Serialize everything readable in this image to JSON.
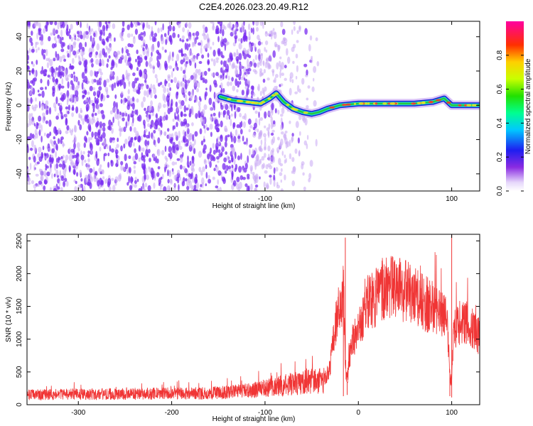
{
  "figure": {
    "title": "C2E4.2026.023.20.49.R12"
  },
  "chart_data": [
    {
      "type": "heatmap",
      "xlabel": "Height of straight line (km)",
      "ylabel": "Frequency (Hz)",
      "xlim": [
        -355,
        130
      ],
      "ylim": [
        -50,
        49
      ],
      "xticks": [
        -300,
        -200,
        -100,
        0,
        100
      ],
      "yticks": [
        -40,
        -20,
        0,
        20,
        40
      ],
      "grid": false,
      "colorbar": {
        "label": "Normalized spectral amplitude",
        "range": [
          0,
          1
        ],
        "ticks": [
          "0.0",
          "0.2",
          "0.4",
          "0.6",
          "0.8"
        ],
        "tick_values": [
          0,
          0.2,
          0.4,
          0.6,
          0.8
        ],
        "colormap": "rainbow (white, purple, blue, cyan, green, yellow, red, magenta)"
      },
      "colors": {
        "noise": "#7a2cf0",
        "noise_light": "#c9a8f4",
        "ridge_edge": "#1a20d8",
        "ridge_mid": "#20d8d0",
        "ridge_core": "#28c840",
        "ridge_hot": "#f03a2a"
      },
      "noise_region": {
        "x_start": -355,
        "x_fade": -110,
        "x_end": -40
      },
      "signal_ridge": [
        {
          "x": -148,
          "f": 5
        },
        {
          "x": -135,
          "f": 3
        },
        {
          "x": -120,
          "f": 2
        },
        {
          "x": -105,
          "f": 1
        },
        {
          "x": -95,
          "f": 4
        },
        {
          "x": -88,
          "f": 7
        },
        {
          "x": -80,
          "f": 2
        },
        {
          "x": -70,
          "f": -2
        },
        {
          "x": -60,
          "f": -4
        },
        {
          "x": -50,
          "f": -5
        },
        {
          "x": -42,
          "f": -4
        },
        {
          "x": -33,
          "f": -2
        },
        {
          "x": -20,
          "f": 0
        },
        {
          "x": 0,
          "f": 1
        },
        {
          "x": 30,
          "f": 1
        },
        {
          "x": 60,
          "f": 1
        },
        {
          "x": 80,
          "f": 2
        },
        {
          "x": 92,
          "f": 4
        },
        {
          "x": 100,
          "f": 0
        },
        {
          "x": 130,
          "f": 0
        }
      ]
    },
    {
      "type": "line",
      "xlabel": "Height of straight line (km)",
      "ylabel": "SNR (10 * v/v)",
      "xlim": [
        -355,
        130
      ],
      "ylim": [
        0,
        2600
      ],
      "xticks": [
        -300,
        -200,
        -100,
        0,
        100
      ],
      "yticks": [
        0,
        500,
        1000,
        1500,
        2000,
        2500
      ],
      "grid": false,
      "series": [
        {
          "color": "#f03535",
          "envelope": [
            {
              "x": -355,
              "y": 150
            },
            {
              "x": -300,
              "y": 160
            },
            {
              "x": -200,
              "y": 170
            },
            {
              "x": -150,
              "y": 180
            },
            {
              "x": -120,
              "y": 210
            },
            {
              "x": -100,
              "y": 250
            },
            {
              "x": -80,
              "y": 300
            },
            {
              "x": -60,
              "y": 340
            },
            {
              "x": -45,
              "y": 360
            },
            {
              "x": -35,
              "y": 380
            },
            {
              "x": -30,
              "y": 600
            },
            {
              "x": -25,
              "y": 1200
            },
            {
              "x": -20,
              "y": 1500
            },
            {
              "x": -16,
              "y": 1700
            },
            {
              "x": -14,
              "y": 600
            },
            {
              "x": -12,
              "y": 350
            },
            {
              "x": -8,
              "y": 900
            },
            {
              "x": 0,
              "y": 1150
            },
            {
              "x": 10,
              "y": 1500
            },
            {
              "x": 25,
              "y": 1750
            },
            {
              "x": 40,
              "y": 1800
            },
            {
              "x": 55,
              "y": 1700
            },
            {
              "x": 70,
              "y": 1550
            },
            {
              "x": 85,
              "y": 1450
            },
            {
              "x": 95,
              "y": 1400
            },
            {
              "x": 98,
              "y": 500
            },
            {
              "x": 100,
              "y": 300
            },
            {
              "x": 102,
              "y": 1150
            },
            {
              "x": 115,
              "y": 1250
            },
            {
              "x": 130,
              "y": 1050
            }
          ],
          "spikes": [
            {
              "x": -14,
              "y": 2550
            },
            {
              "x": 100,
              "y": 2600
            },
            {
              "x": 98,
              "y": 130
            },
            {
              "x": 100,
              "y": 110
            },
            {
              "x": -12,
              "y": 150
            },
            {
              "x": -16,
              "y": 130
            }
          ]
        }
      ]
    }
  ]
}
